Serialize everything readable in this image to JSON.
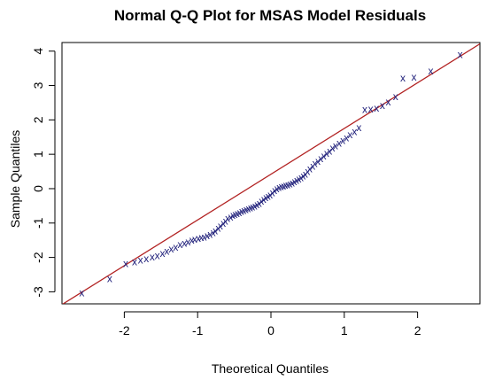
{
  "chart_data": {
    "type": "scatter",
    "title": "Normal Q-Q Plot for MSAS Model Residuals",
    "xlabel": "Theoretical Quantiles",
    "ylabel": "Sample Quantiles",
    "xlim": [
      -2.85,
      2.85
    ],
    "ylim": [
      -3.35,
      4.25
    ],
    "x_ticks": [
      -2,
      -1,
      0,
      1,
      2
    ],
    "x_tick_labels": [
      "-2",
      "-1",
      "0",
      "1",
      "2"
    ],
    "y_ticks": [
      -3,
      -2,
      -1,
      0,
      1,
      2,
      3,
      4
    ],
    "y_tick_labels": [
      "-3",
      "-2",
      "-1",
      "0",
      "1",
      "2",
      "3",
      "4"
    ],
    "grid": false,
    "marker": "x",
    "point_color": "#1f1f7a",
    "line_color": "#b22222",
    "reference_line": {
      "slope": 1.33,
      "intercept": 0.42
    },
    "points": [
      [
        -2.58,
        -3.03
      ],
      [
        -2.2,
        -2.61
      ],
      [
        -1.98,
        -2.18
      ],
      [
        -1.86,
        -2.13
      ],
      [
        -1.78,
        -2.08
      ],
      [
        -1.7,
        -2.03
      ],
      [
        -1.62,
        -1.98
      ],
      [
        -1.55,
        -1.95
      ],
      [
        -1.48,
        -1.88
      ],
      [
        -1.42,
        -1.82
      ],
      [
        -1.36,
        -1.75
      ],
      [
        -1.3,
        -1.7
      ],
      [
        -1.24,
        -1.63
      ],
      [
        -1.18,
        -1.58
      ],
      [
        -1.13,
        -1.55
      ],
      [
        -1.08,
        -1.5
      ],
      [
        -1.04,
        -1.47
      ],
      [
        -0.99,
        -1.44
      ],
      [
        -0.95,
        -1.42
      ],
      [
        -0.91,
        -1.4
      ],
      [
        -0.87,
        -1.36
      ],
      [
        -0.83,
        -1.33
      ],
      [
        -0.79,
        -1.28
      ],
      [
        -0.76,
        -1.23
      ],
      [
        -0.72,
        -1.15
      ],
      [
        -0.69,
        -1.08
      ],
      [
        -0.65,
        -1.0
      ],
      [
        -0.62,
        -0.94
      ],
      [
        -0.59,
        -0.87
      ],
      [
        -0.55,
        -0.82
      ],
      [
        -0.52,
        -0.78
      ],
      [
        -0.49,
        -0.75
      ],
      [
        -0.46,
        -0.72
      ],
      [
        -0.43,
        -0.69
      ],
      [
        -0.4,
        -0.66
      ],
      [
        -0.37,
        -0.63
      ],
      [
        -0.34,
        -0.6
      ],
      [
        -0.31,
        -0.58
      ],
      [
        -0.28,
        -0.55
      ],
      [
        -0.25,
        -0.53
      ],
      [
        -0.22,
        -0.5
      ],
      [
        -0.19,
        -0.47
      ],
      [
        -0.16,
        -0.42
      ],
      [
        -0.13,
        -0.36
      ],
      [
        -0.1,
        -0.31
      ],
      [
        -0.07,
        -0.26
      ],
      [
        -0.04,
        -0.22
      ],
      [
        -0.01,
        -0.18
      ],
      [
        0.02,
        -0.12
      ],
      [
        0.05,
        -0.05
      ],
      [
        0.08,
        0.0
      ],
      [
        0.11,
        0.04
      ],
      [
        0.14,
        0.06
      ],
      [
        0.17,
        0.08
      ],
      [
        0.2,
        0.1
      ],
      [
        0.23,
        0.12
      ],
      [
        0.26,
        0.14
      ],
      [
        0.29,
        0.17
      ],
      [
        0.32,
        0.2
      ],
      [
        0.35,
        0.24
      ],
      [
        0.38,
        0.28
      ],
      [
        0.41,
        0.32
      ],
      [
        0.44,
        0.37
      ],
      [
        0.47,
        0.43
      ],
      [
        0.5,
        0.5
      ],
      [
        0.53,
        0.58
      ],
      [
        0.57,
        0.66
      ],
      [
        0.6,
        0.73
      ],
      [
        0.64,
        0.8
      ],
      [
        0.68,
        0.88
      ],
      [
        0.72,
        0.95
      ],
      [
        0.76,
        1.03
      ],
      [
        0.8,
        1.1
      ],
      [
        0.84,
        1.18
      ],
      [
        0.88,
        1.25
      ],
      [
        0.93,
        1.32
      ],
      [
        0.98,
        1.4
      ],
      [
        1.03,
        1.48
      ],
      [
        1.08,
        1.57
      ],
      [
        1.14,
        1.66
      ],
      [
        1.2,
        1.78
      ],
      [
        1.28,
        2.3
      ],
      [
        1.36,
        2.32
      ],
      [
        1.44,
        2.35
      ],
      [
        1.52,
        2.42
      ],
      [
        1.6,
        2.52
      ],
      [
        1.7,
        2.68
      ],
      [
        1.8,
        3.22
      ],
      [
        1.95,
        3.25
      ],
      [
        2.18,
        3.42
      ],
      [
        2.58,
        3.9
      ]
    ]
  }
}
